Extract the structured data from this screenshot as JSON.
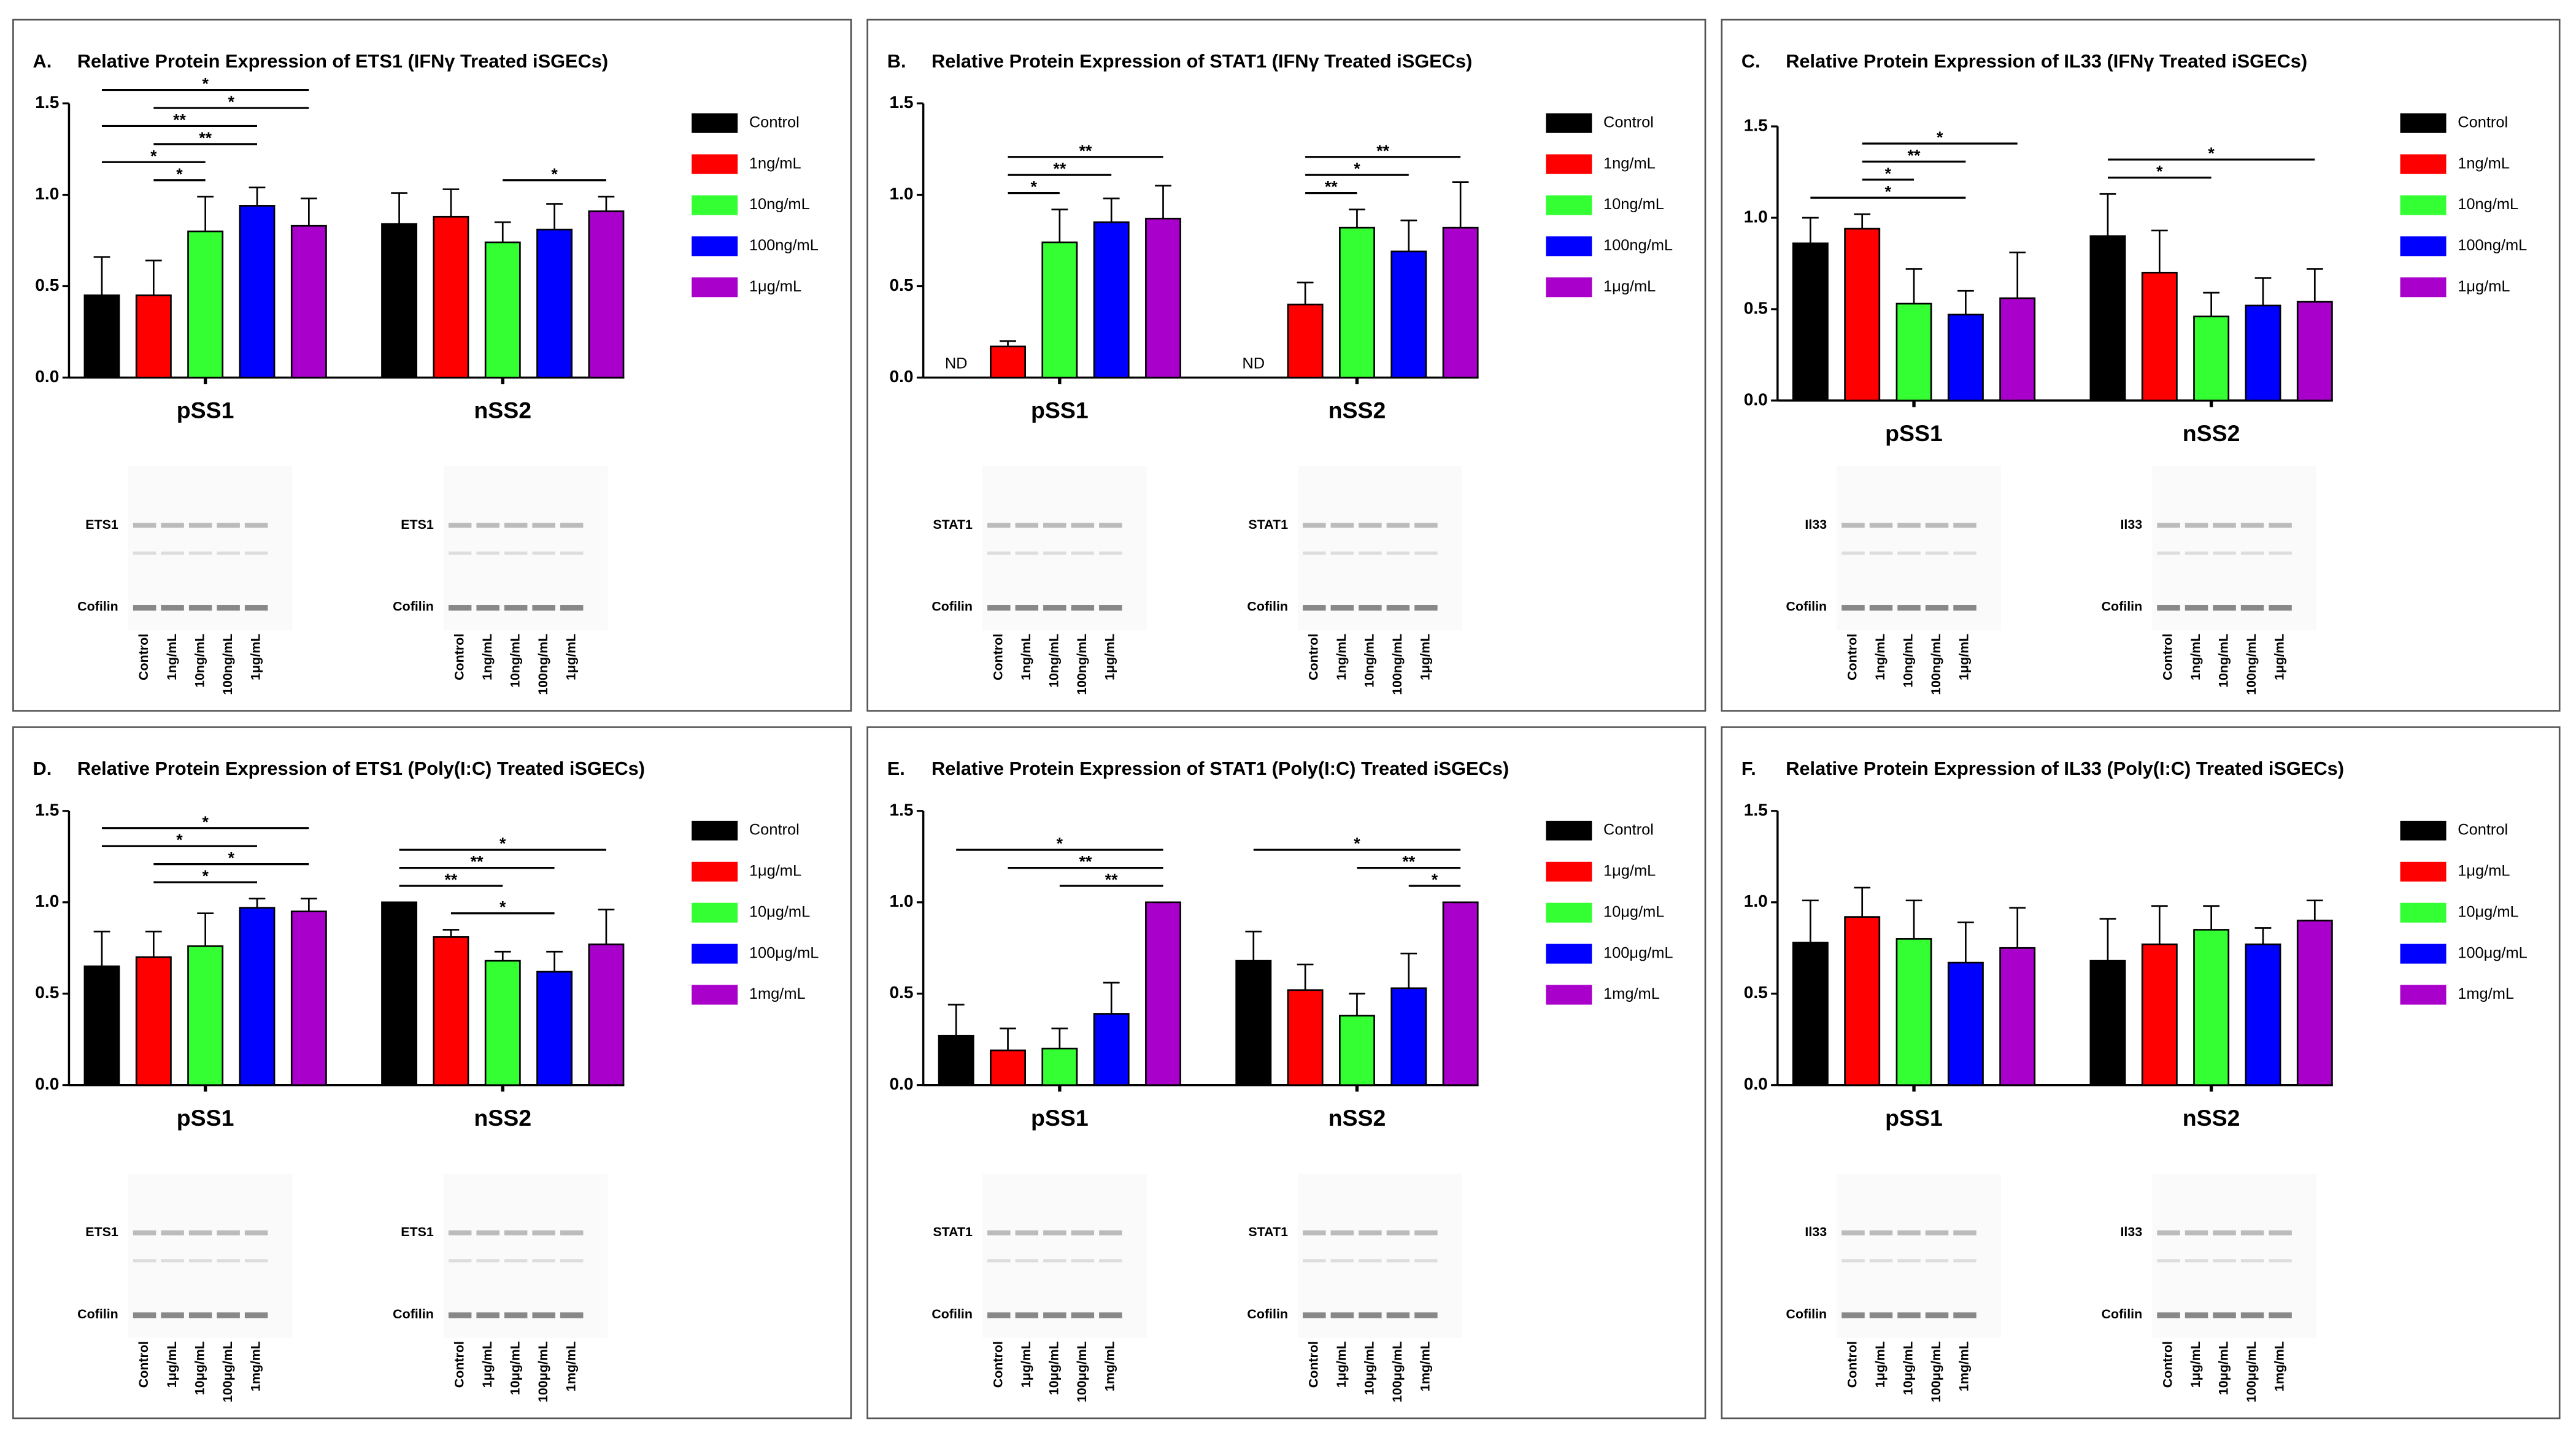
{
  "chart_data": [
    {
      "type": "bar",
      "panel": "A.",
      "title": "Relative Protein Expression of ETS1 (IFNγ Treated iSGECs)",
      "categories": [
        "pSS1",
        "nSS2"
      ],
      "series": [
        {
          "name": "Control",
          "color": "#000000",
          "values": [
            0.45,
            0.84
          ],
          "errors": [
            0.21,
            0.17
          ]
        },
        {
          "name": "1ng/mL",
          "color": "#ff0000",
          "values": [
            0.45,
            0.88
          ],
          "errors": [
            0.19,
            0.15
          ]
        },
        {
          "name": "10ng/mL",
          "color": "#33ff33",
          "values": [
            0.8,
            0.74
          ],
          "errors": [
            0.19,
            0.11
          ]
        },
        {
          "name": "100ng/mL",
          "color": "#0000ff",
          "values": [
            0.94,
            0.81
          ],
          "errors": [
            0.1,
            0.14
          ]
        },
        {
          "name": "1μg/mL",
          "color": "#aa00cc",
          "values": [
            0.83,
            0.91
          ],
          "errors": [
            0.15,
            0.08
          ]
        }
      ],
      "ylim": [
        0,
        1.5
      ],
      "yticks": [
        {
          "value": 0,
          "label": "0.0"
        },
        {
          "value": 0.5,
          "label": "0.5"
        },
        {
          "value": 1,
          "label": "1.0"
        },
        {
          "value": 1.5,
          "label": "1.5"
        }
      ],
      "brackets": [
        {
          "category": 0,
          "from": 0,
          "to": 4,
          "label": "*"
        },
        {
          "category": 0,
          "from": 1,
          "to": 4,
          "label": "*"
        },
        {
          "category": 0,
          "from": 0,
          "to": 3,
          "label": "**"
        },
        {
          "category": 0,
          "from": 1,
          "to": 3,
          "label": "**"
        },
        {
          "category": 0,
          "from": 0,
          "to": 2,
          "label": "*"
        },
        {
          "category": 0,
          "from": 1,
          "to": 2,
          "label": "*"
        },
        {
          "category": 1,
          "from": 2,
          "to": 4,
          "label": "*"
        }
      ],
      "blots": [
        {
          "labels": [
            "ETS1",
            "Cofilin"
          ],
          "lanes": [
            "Control",
            "1ng/mL",
            "10ng/mL",
            "100ng/mL",
            "1μg/mL"
          ]
        },
        {
          "labels": [
            "ETS1",
            "Cofilin"
          ],
          "lanes": [
            "Control",
            "1ng/mL",
            "10ng/mL",
            "100ng/mL",
            "1μg/mL"
          ]
        }
      ]
    },
    {
      "type": "bar",
      "panel": "B.",
      "title": "Relative Protein Expression of STAT1 (IFNγ Treated iSGECs)",
      "categories": [
        "pSS1",
        "nSS2"
      ],
      "series": [
        {
          "name": "Control",
          "color": "#000000",
          "values": [
            null,
            null
          ],
          "value_labels": [
            "ND",
            "ND"
          ]
        },
        {
          "name": "1ng/mL",
          "color": "#ff0000",
          "values": [
            0.17,
            0.4
          ],
          "errors": [
            0.03,
            0.12
          ]
        },
        {
          "name": "10ng/mL",
          "color": "#33ff33",
          "values": [
            0.74,
            0.82
          ],
          "errors": [
            0.18,
            0.1
          ]
        },
        {
          "name": "100ng/mL",
          "color": "#0000ff",
          "values": [
            0.85,
            0.69
          ],
          "errors": [
            0.13,
            0.17
          ]
        },
        {
          "name": "1μg/mL",
          "color": "#aa00cc",
          "values": [
            0.87,
            0.82
          ],
          "errors": [
            0.18,
            0.25
          ]
        }
      ],
      "ylim": [
        0,
        1.5
      ],
      "yticks": [
        {
          "value": 0,
          "label": "0.0"
        },
        {
          "value": 0.5,
          "label": "0.5"
        },
        {
          "value": 1,
          "label": "1.0"
        },
        {
          "value": 1.5,
          "label": "1.5"
        }
      ],
      "brackets": [
        {
          "category": 0,
          "from": 1,
          "to": 4,
          "label": "**"
        },
        {
          "category": 0,
          "from": 1,
          "to": 3,
          "label": "**"
        },
        {
          "category": 0,
          "from": 1,
          "to": 2,
          "label": "*"
        },
        {
          "category": 1,
          "from": 1,
          "to": 4,
          "label": "**"
        },
        {
          "category": 1,
          "from": 1,
          "to": 3,
          "label": "*"
        },
        {
          "category": 1,
          "from": 1,
          "to": 2,
          "label": "**"
        }
      ],
      "blots": [
        {
          "labels": [
            "STAT1",
            "Cofilin"
          ],
          "lanes": [
            "Control",
            "1ng/mL",
            "10ng/mL",
            "100ng/mL",
            "1μg/mL"
          ]
        },
        {
          "labels": [
            "STAT1",
            "Cofilin"
          ],
          "lanes": [
            "Control",
            "1ng/mL",
            "10ng/mL",
            "100ng/mL",
            "1μg/mL"
          ]
        }
      ]
    },
    {
      "type": "bar",
      "panel": "C.",
      "title": "Relative Protein Expression of IL33 (IFNγ Treated iSGECs)",
      "categories": [
        "pSS1",
        "nSS2"
      ],
      "series": [
        {
          "name": "Control",
          "color": "#000000",
          "values": [
            0.86,
            0.9
          ],
          "errors": [
            0.14,
            0.23
          ]
        },
        {
          "name": "1ng/mL",
          "color": "#ff0000",
          "values": [
            0.94,
            0.7
          ],
          "errors": [
            0.08,
            0.23
          ]
        },
        {
          "name": "10ng/mL",
          "color": "#33ff33",
          "values": [
            0.53,
            0.46
          ],
          "errors": [
            0.19,
            0.13
          ]
        },
        {
          "name": "100ng/mL",
          "color": "#0000ff",
          "values": [
            0.47,
            0.52
          ],
          "errors": [
            0.13,
            0.15
          ]
        },
        {
          "name": "1μg/mL",
          "color": "#aa00cc",
          "values": [
            0.56,
            0.54
          ],
          "errors": [
            0.25,
            0.18
          ]
        }
      ],
      "ylim": [
        0,
        1.5
      ],
      "yticks": [
        {
          "value": 0,
          "label": "0.0"
        },
        {
          "value": 0.5,
          "label": "0.5"
        },
        {
          "value": 1,
          "label": "1.0"
        },
        {
          "value": 1.5,
          "label": "1.5"
        }
      ],
      "brackets": [
        {
          "category": 0,
          "from": 1,
          "to": 4,
          "label": "*"
        },
        {
          "category": 0,
          "from": 1,
          "to": 3,
          "label": "**"
        },
        {
          "category": 0,
          "from": 1,
          "to": 2,
          "label": "*"
        },
        {
          "category": 0,
          "from": 0,
          "to": 3,
          "label": "*"
        },
        {
          "category": 1,
          "from": 0,
          "to": 4,
          "label": "*"
        },
        {
          "category": 1,
          "from": 0,
          "to": 2,
          "label": "*"
        }
      ],
      "blots": [
        {
          "labels": [
            "Il33",
            "Cofilin"
          ],
          "lanes": [
            "Control",
            "1ng/mL",
            "10ng/mL",
            "100ng/mL",
            "1μg/mL"
          ]
        },
        {
          "labels": [
            "Il33",
            "Cofilin"
          ],
          "lanes": [
            "Control",
            "1ng/mL",
            "10ng/mL",
            "100ng/mL",
            "1μg/mL"
          ]
        }
      ]
    },
    {
      "type": "bar",
      "panel": "D.",
      "title": "Relative Protein Expression of ETS1 (Poly(I:C) Treated iSGECs)",
      "categories": [
        "pSS1",
        "nSS2"
      ],
      "series": [
        {
          "name": "Control",
          "color": "#000000",
          "values": [
            0.65,
            1.0
          ],
          "errors": [
            0.19,
            0.0
          ]
        },
        {
          "name": "1μg/mL",
          "color": "#ff0000",
          "values": [
            0.7,
            0.81
          ],
          "errors": [
            0.14,
            0.04
          ]
        },
        {
          "name": "10μg/mL",
          "color": "#33ff33",
          "values": [
            0.76,
            0.68
          ],
          "errors": [
            0.18,
            0.05
          ]
        },
        {
          "name": "100μg/mL",
          "color": "#0000ff",
          "values": [
            0.97,
            0.62
          ],
          "errors": [
            0.05,
            0.11
          ]
        },
        {
          "name": "1mg/mL",
          "color": "#aa00cc",
          "values": [
            0.95,
            0.77
          ],
          "errors": [
            0.07,
            0.19
          ]
        }
      ],
      "ylim": [
        0,
        1.5
      ],
      "yticks": [
        {
          "value": 0,
          "label": "0.0"
        },
        {
          "value": 0.5,
          "label": "0.5"
        },
        {
          "value": 1,
          "label": "1.0"
        },
        {
          "value": 1.5,
          "label": "1.5"
        }
      ],
      "brackets": [
        {
          "category": 0,
          "from": 0,
          "to": 4,
          "label": "*"
        },
        {
          "category": 0,
          "from": 0,
          "to": 3,
          "label": "*"
        },
        {
          "category": 0,
          "from": 1,
          "to": 4,
          "label": "*"
        },
        {
          "category": 0,
          "from": 1,
          "to": 3,
          "label": "*"
        },
        {
          "category": 1,
          "from": 0,
          "to": 4,
          "label": "*"
        },
        {
          "category": 1,
          "from": 0,
          "to": 3,
          "label": "**"
        },
        {
          "category": 1,
          "from": 0,
          "to": 2,
          "label": "**"
        },
        {
          "category": 1,
          "from": 1,
          "to": 3,
          "label": "*"
        }
      ],
      "blots": [
        {
          "labels": [
            "ETS1",
            "Cofilin"
          ],
          "lanes": [
            "Control",
            "1μg/mL",
            "10μg/mL",
            "100μg/mL",
            "1mg/mL"
          ]
        },
        {
          "labels": [
            "ETS1",
            "Cofilin"
          ],
          "lanes": [
            "Control",
            "1μg/mL",
            "10μg/mL",
            "100μg/mL",
            "1mg/mL"
          ]
        }
      ]
    },
    {
      "type": "bar",
      "panel": "E.",
      "title": "Relative Protein Expression of STAT1 (Poly(I:C) Treated iSGECs)",
      "categories": [
        "pSS1",
        "nSS2"
      ],
      "series": [
        {
          "name": "Control",
          "color": "#000000",
          "values": [
            0.27,
            0.68
          ],
          "errors": [
            0.17,
            0.16
          ]
        },
        {
          "name": "1μg/mL",
          "color": "#ff0000",
          "values": [
            0.19,
            0.52
          ],
          "errors": [
            0.12,
            0.14
          ]
        },
        {
          "name": "10μg/mL",
          "color": "#33ff33",
          "values": [
            0.2,
            0.38
          ],
          "errors": [
            0.11,
            0.12
          ]
        },
        {
          "name": "100μg/mL",
          "color": "#0000ff",
          "values": [
            0.39,
            0.53
          ],
          "errors": [
            0.17,
            0.19
          ]
        },
        {
          "name": "1mg/mL",
          "color": "#aa00cc",
          "values": [
            1.0,
            1.0
          ],
          "errors": [
            0.0,
            0.0
          ]
        }
      ],
      "ylim": [
        0,
        1.5
      ],
      "yticks": [
        {
          "value": 0,
          "label": "0.0"
        },
        {
          "value": 0.5,
          "label": "0.5"
        },
        {
          "value": 1,
          "label": "1.0"
        },
        {
          "value": 1.5,
          "label": "1.5"
        }
      ],
      "brackets": [
        {
          "category": 0,
          "from": 0,
          "to": 4,
          "label": "*"
        },
        {
          "category": 0,
          "from": 1,
          "to": 4,
          "label": "**"
        },
        {
          "category": 0,
          "from": 2,
          "to": 4,
          "label": "**"
        },
        {
          "category": 1,
          "from": 0,
          "to": 4,
          "label": "*"
        },
        {
          "category": 1,
          "from": 2,
          "to": 4,
          "label": "**"
        },
        {
          "category": 1,
          "from": 3,
          "to": 4,
          "label": "*"
        }
      ],
      "blots": [
        {
          "labels": [
            "STAT1",
            "Cofilin"
          ],
          "lanes": [
            "Control",
            "1μg/mL",
            "10μg/mL",
            "100μg/mL",
            "1mg/mL"
          ]
        },
        {
          "labels": [
            "STAT1",
            "Cofilin"
          ],
          "lanes": [
            "Control",
            "1μg/mL",
            "10μg/mL",
            "100μg/mL",
            "1mg/mL"
          ]
        }
      ]
    },
    {
      "type": "bar",
      "panel": "F.",
      "title": "Relative Protein Expression of IL33 (Poly(I:C) Treated iSGECs)",
      "categories": [
        "pSS1",
        "nSS2"
      ],
      "series": [
        {
          "name": "Control",
          "color": "#000000",
          "values": [
            0.78,
            0.68
          ],
          "errors": [
            0.23,
            0.23
          ]
        },
        {
          "name": "1μg/mL",
          "color": "#ff0000",
          "values": [
            0.92,
            0.77
          ],
          "errors": [
            0.16,
            0.21
          ]
        },
        {
          "name": "10μg/mL",
          "color": "#33ff33",
          "values": [
            0.8,
            0.85
          ],
          "errors": [
            0.21,
            0.13
          ]
        },
        {
          "name": "100μg/mL",
          "color": "#0000ff",
          "values": [
            0.67,
            0.77
          ],
          "errors": [
            0.22,
            0.09
          ]
        },
        {
          "name": "1mg/mL",
          "color": "#aa00cc",
          "values": [
            0.75,
            0.9
          ],
          "errors": [
            0.22,
            0.11
          ]
        }
      ],
      "ylim": [
        0,
        1.5
      ],
      "yticks": [
        {
          "value": 0,
          "label": "0.0"
        },
        {
          "value": 0.5,
          "label": "0.5"
        },
        {
          "value": 1,
          "label": "1.0"
        },
        {
          "value": 1.5,
          "label": "1.5"
        }
      ],
      "brackets": [],
      "blots": [
        {
          "labels": [
            "Il33",
            "Cofilin"
          ],
          "lanes": [
            "Control",
            "1μg/mL",
            "10μg/mL",
            "100μg/mL",
            "1mg/mL"
          ]
        },
        {
          "labels": [
            "Il33",
            "Cofilin"
          ],
          "lanes": [
            "Control",
            "1μg/mL",
            "10μg/mL",
            "100μg/mL",
            "1mg/mL"
          ]
        }
      ]
    }
  ]
}
